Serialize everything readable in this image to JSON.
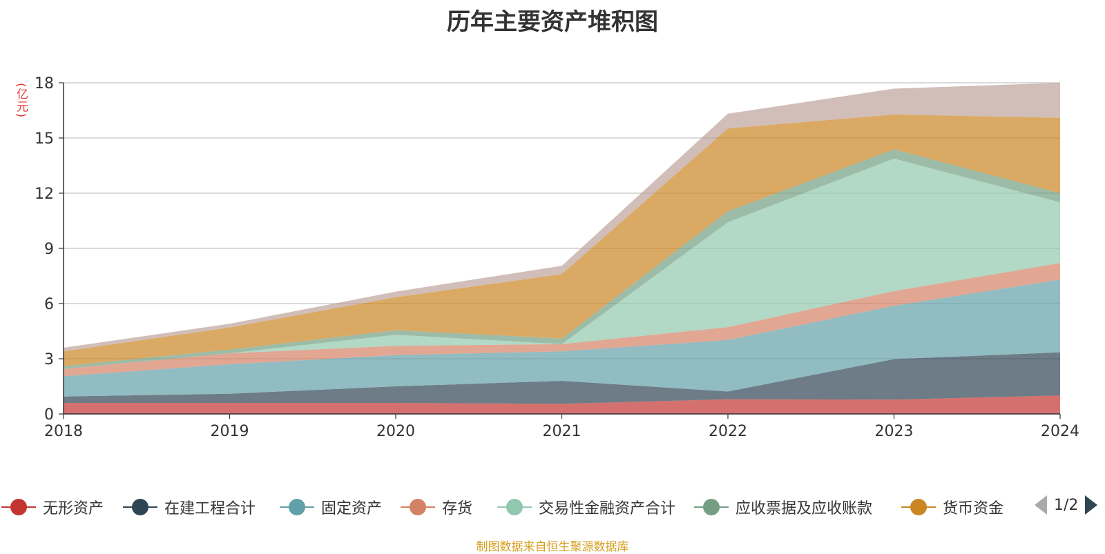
{
  "chart_data": {
    "type": "area",
    "stacked": true,
    "title": "历年主要资产堆积图",
    "ylabel": "(亿元)",
    "xlabel": "",
    "x": [
      "2018",
      "2019",
      "2020",
      "2021",
      "2022",
      "2023",
      "2024"
    ],
    "ylim": [
      0,
      18
    ],
    "yticks": [
      0,
      3,
      6,
      9,
      12,
      15,
      18
    ],
    "grid": true,
    "legend_position": "bottom",
    "series": [
      {
        "name": "无形资产",
        "color": "#c23531",
        "values": [
          0.6,
          0.6,
          0.6,
          0.55,
          0.8,
          0.78,
          1.0
        ]
      },
      {
        "name": "在建工程合计",
        "color": "#2f4554",
        "values": [
          0.35,
          0.5,
          0.9,
          1.25,
          0.42,
          2.2,
          2.35
        ]
      },
      {
        "name": "固定资产",
        "color": "#61a0a8",
        "values": [
          1.1,
          1.6,
          1.7,
          1.6,
          2.8,
          2.9,
          3.95
        ]
      },
      {
        "name": "存货",
        "color": "#d48265",
        "values": [
          0.4,
          0.6,
          0.5,
          0.4,
          0.7,
          0.8,
          0.9
        ]
      },
      {
        "name": "交易性金融资产合计",
        "color": "#91c7ae",
        "values": [
          0.0,
          0.0,
          0.6,
          0.0,
          5.7,
          7.2,
          3.3
        ]
      },
      {
        "name": "应收票据及应收账款",
        "color": "#749f83",
        "values": [
          0.15,
          0.2,
          0.25,
          0.3,
          0.6,
          0.5,
          0.5
        ]
      },
      {
        "name": "货币资金",
        "color": "#ca8622",
        "values": [
          0.8,
          1.2,
          1.8,
          3.5,
          4.5,
          1.9,
          4.1
        ]
      },
      {
        "name": "",
        "color": "#bda29a",
        "values": [
          0.2,
          0.2,
          0.3,
          0.45,
          0.8,
          1.4,
          1.9
        ]
      }
    ],
    "legend_visible_count": 7,
    "pager": "1/2"
  },
  "source_note": "制图数据来自恒生聚源数据库"
}
